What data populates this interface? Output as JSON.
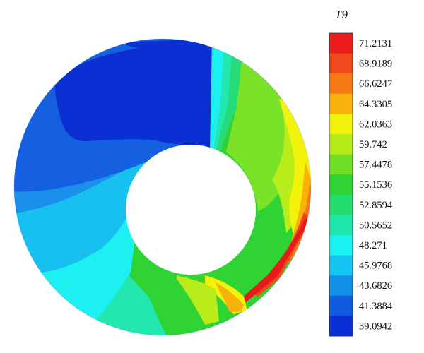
{
  "legend": {
    "title": "T9",
    "levels": [
      {
        "label": "71.2131",
        "color": "#ec1c1c"
      },
      {
        "label": "68.9189",
        "color": "#ef4a1b"
      },
      {
        "label": "66.6247",
        "color": "#f57a14"
      },
      {
        "label": "64.3305",
        "color": "#f9b10d"
      },
      {
        "label": "62.0363",
        "color": "#f2f20a"
      },
      {
        "label": "59.742",
        "color": "#b5ec18"
      },
      {
        "label": "57.4478",
        "color": "#6fe026"
      },
      {
        "label": "55.1536",
        "color": "#2fd434"
      },
      {
        "label": "52.8594",
        "color": "#22dc6e"
      },
      {
        "label": "50.5652",
        "color": "#1fe6ad"
      },
      {
        "label": "48.271",
        "color": "#18f2f0"
      },
      {
        "label": "45.9768",
        "color": "#15c4f0"
      },
      {
        "label": "43.6826",
        "color": "#1290e8"
      },
      {
        "label": "41.3884",
        "color": "#0f5ae0"
      },
      {
        "label": "39.0942",
        "color": "#0a2fd2"
      }
    ]
  },
  "field": {
    "colors": {
      "deep_blue": "#0a2fd2",
      "blue": "#1560e0",
      "light_blue": "#1a90ea",
      "sky": "#17c0f0",
      "cyan": "#1cf0f0",
      "aqua": "#22e8b0",
      "green_aqua": "#25dc78",
      "green": "#2fd434",
      "lime_green": "#7ae228",
      "yellow_green": "#b8ec1a",
      "yellow": "#f2f20a",
      "orange_yellow": "#f9b10d",
      "orange": "#f57a14",
      "red_orange": "#ef4a1b",
      "red": "#e81a1a"
    }
  }
}
